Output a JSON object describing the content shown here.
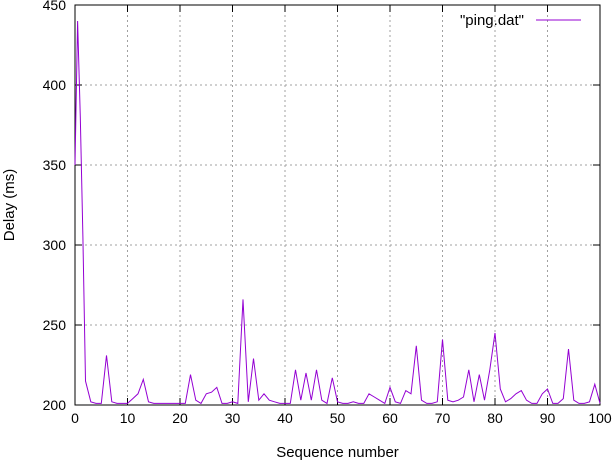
{
  "chart_data": {
    "type": "line",
    "title": "",
    "xlabel": "Sequence number",
    "ylabel": "Delay (ms)",
    "xlim": [
      0,
      100
    ],
    "ylim": [
      200,
      450
    ],
    "xticks": [
      0,
      10,
      20,
      30,
      40,
      50,
      60,
      70,
      80,
      90,
      100
    ],
    "yticks": [
      200,
      250,
      300,
      350,
      400,
      450
    ],
    "grid": true,
    "legend_position": "top-right",
    "colors": {
      "series": "#9400d3",
      "grid": "#a0a0a0",
      "axis": "#000000"
    },
    "series": [
      {
        "name": "\"ping.dat\"",
        "x": [
          0,
          0.5,
          1,
          1.5,
          2,
          3,
          4,
          5,
          6,
          7,
          8,
          9,
          10,
          11,
          12,
          13,
          14,
          15,
          16,
          17,
          18,
          19,
          20,
          21,
          22,
          23,
          24,
          25,
          26,
          27,
          28,
          29,
          30,
          31,
          32,
          33,
          34,
          35,
          36,
          37,
          38,
          39,
          40,
          41,
          42,
          43,
          44,
          45,
          46,
          47,
          48,
          49,
          50,
          51,
          52,
          53,
          54,
          55,
          56,
          57,
          58,
          59,
          60,
          61,
          62,
          63,
          64,
          65,
          66,
          67,
          68,
          69,
          70,
          71,
          72,
          73,
          74,
          75,
          76,
          77,
          78,
          79,
          80,
          81,
          82,
          83,
          84,
          85,
          86,
          87,
          88,
          89,
          90,
          91,
          92,
          93,
          94,
          95,
          96,
          97,
          98,
          99,
          100
        ],
        "y": [
          350,
          440,
          380,
          305,
          215,
          202,
          201,
          201,
          231,
          202,
          201,
          201,
          201,
          204,
          207,
          216,
          202,
          201,
          201,
          201,
          201,
          201,
          201,
          201,
          219,
          203,
          201,
          207,
          208,
          211,
          201,
          201,
          202,
          201,
          266,
          202,
          229,
          203,
          207,
          203,
          202,
          201,
          201,
          201,
          222,
          203,
          220,
          203,
          222,
          203,
          201,
          217,
          202,
          201,
          201,
          202,
          201,
          201,
          207,
          205,
          203,
          201,
          211,
          202,
          201,
          209,
          207,
          237,
          203,
          201,
          201,
          202,
          241,
          203,
          202,
          203,
          205,
          222,
          202,
          219,
          203,
          222,
          245,
          210,
          202,
          204,
          207,
          209,
          203,
          201,
          201,
          207,
          210,
          201,
          201,
          204,
          235,
          203,
          201,
          201,
          202,
          213,
          201
        ]
      }
    ]
  }
}
